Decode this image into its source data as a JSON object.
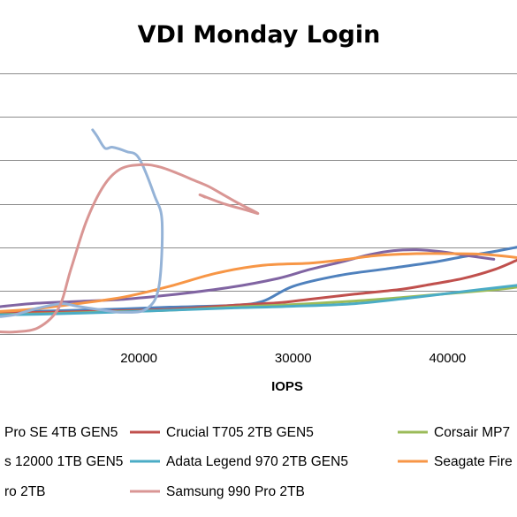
{
  "chart_data": {
    "type": "scatter",
    "title": "VDI Monday Login",
    "xlabel": "IOPS",
    "ylabel": "",
    "xlim": [
      11000,
      44500
    ],
    "ylim": [
      0,
      600
    ],
    "x_ticks": [
      20000,
      30000,
      40000
    ],
    "grid": true,
    "legend_position": "bottom",
    "legend_labels": [
      "Pro SE 4TB GEN5",
      "Crucial T705 2TB GEN5",
      "Corsair MP7",
      "s 12000 1TB GEN5",
      "Adata Legend 970 2TB GEN5",
      "Seagate Fire",
      "ro 2TB",
      "Samsung 990 Pro 2TB"
    ],
    "series": [
      {
        "color": "#4f81bd",
        "x": [
          11000,
          13000,
          16000,
          19000,
          22000,
          26000,
          28000,
          30000,
          33000,
          36000,
          39000,
          41000,
          43000,
          44500
        ],
        "y": [
          50,
          52,
          55,
          58,
          62,
          66,
          75,
          110,
          135,
          150,
          165,
          178,
          190,
          200
        ]
      },
      {
        "color": "#c0504d",
        "x": [
          11000,
          14000,
          18000,
          22000,
          26000,
          29000,
          31000,
          34000,
          37000,
          39000,
          41000,
          43000,
          44500
        ],
        "y": [
          50,
          50,
          53,
          57,
          66,
          72,
          80,
          92,
          103,
          115,
          128,
          148,
          170
        ]
      },
      {
        "color": "#9bbb59",
        "x": [
          11000,
          14000,
          18000,
          22000,
          26000,
          30000,
          34000,
          37000,
          40000,
          43000,
          44500
        ],
        "y": [
          45,
          47,
          51,
          55,
          62,
          68,
          76,
          84,
          93,
          102,
          108
        ]
      },
      {
        "color": "#8064a2",
        "x": [
          11000,
          13000,
          16000,
          19000,
          22000,
          26000,
          29000,
          31000,
          33000,
          35000,
          36500,
          38000,
          39500,
          41000,
          43000
        ],
        "y": [
          63,
          70,
          75,
          80,
          90,
          108,
          128,
          148,
          165,
          183,
          192,
          194,
          190,
          182,
          172
        ]
      },
      {
        "color": "#4bacc6",
        "x": [
          11000,
          14000,
          18000,
          22000,
          26000,
          30000,
          34000,
          38000,
          42000,
          44500
        ],
        "y": [
          44,
          46,
          50,
          55,
          60,
          64,
          70,
          85,
          102,
          112
        ]
      },
      {
        "color": "#f79646",
        "x": [
          11000,
          13000,
          16000,
          19000,
          22000,
          25000,
          28000,
          31000,
          33000,
          35500,
          38000,
          40000,
          42000,
          43500,
          44500
        ],
        "y": [
          52,
          57,
          70,
          85,
          110,
          140,
          158,
          163,
          170,
          181,
          185,
          185,
          184,
          180,
          176
        ]
      },
      {
        "color": "#95b3d7",
        "x": [
          17000,
          17300,
          17800,
          18300,
          19200,
          20000,
          21000,
          21500,
          21300,
          20500,
          19000,
          17500,
          16000,
          15000,
          13500,
          12000,
          11000
        ],
        "y": [
          470,
          455,
          428,
          430,
          420,
          405,
          320,
          258,
          110,
          58,
          50,
          56,
          64,
          70,
          60,
          45,
          40
        ]
      },
      {
        "color": "#d99694",
        "x": [
          11000,
          12000,
          13500,
          14800,
          15600,
          16600,
          17700,
          18800,
          20200,
          21300,
          22500,
          23500,
          24500,
          25500,
          26500,
          27700,
          27000,
          25500,
          24000,
          24300
        ],
        "y": [
          5,
          5,
          15,
          60,
          150,
          260,
          340,
          380,
          390,
          385,
          370,
          355,
          340,
          320,
          300,
          278,
          285,
          300,
          320,
          315
        ]
      }
    ]
  }
}
